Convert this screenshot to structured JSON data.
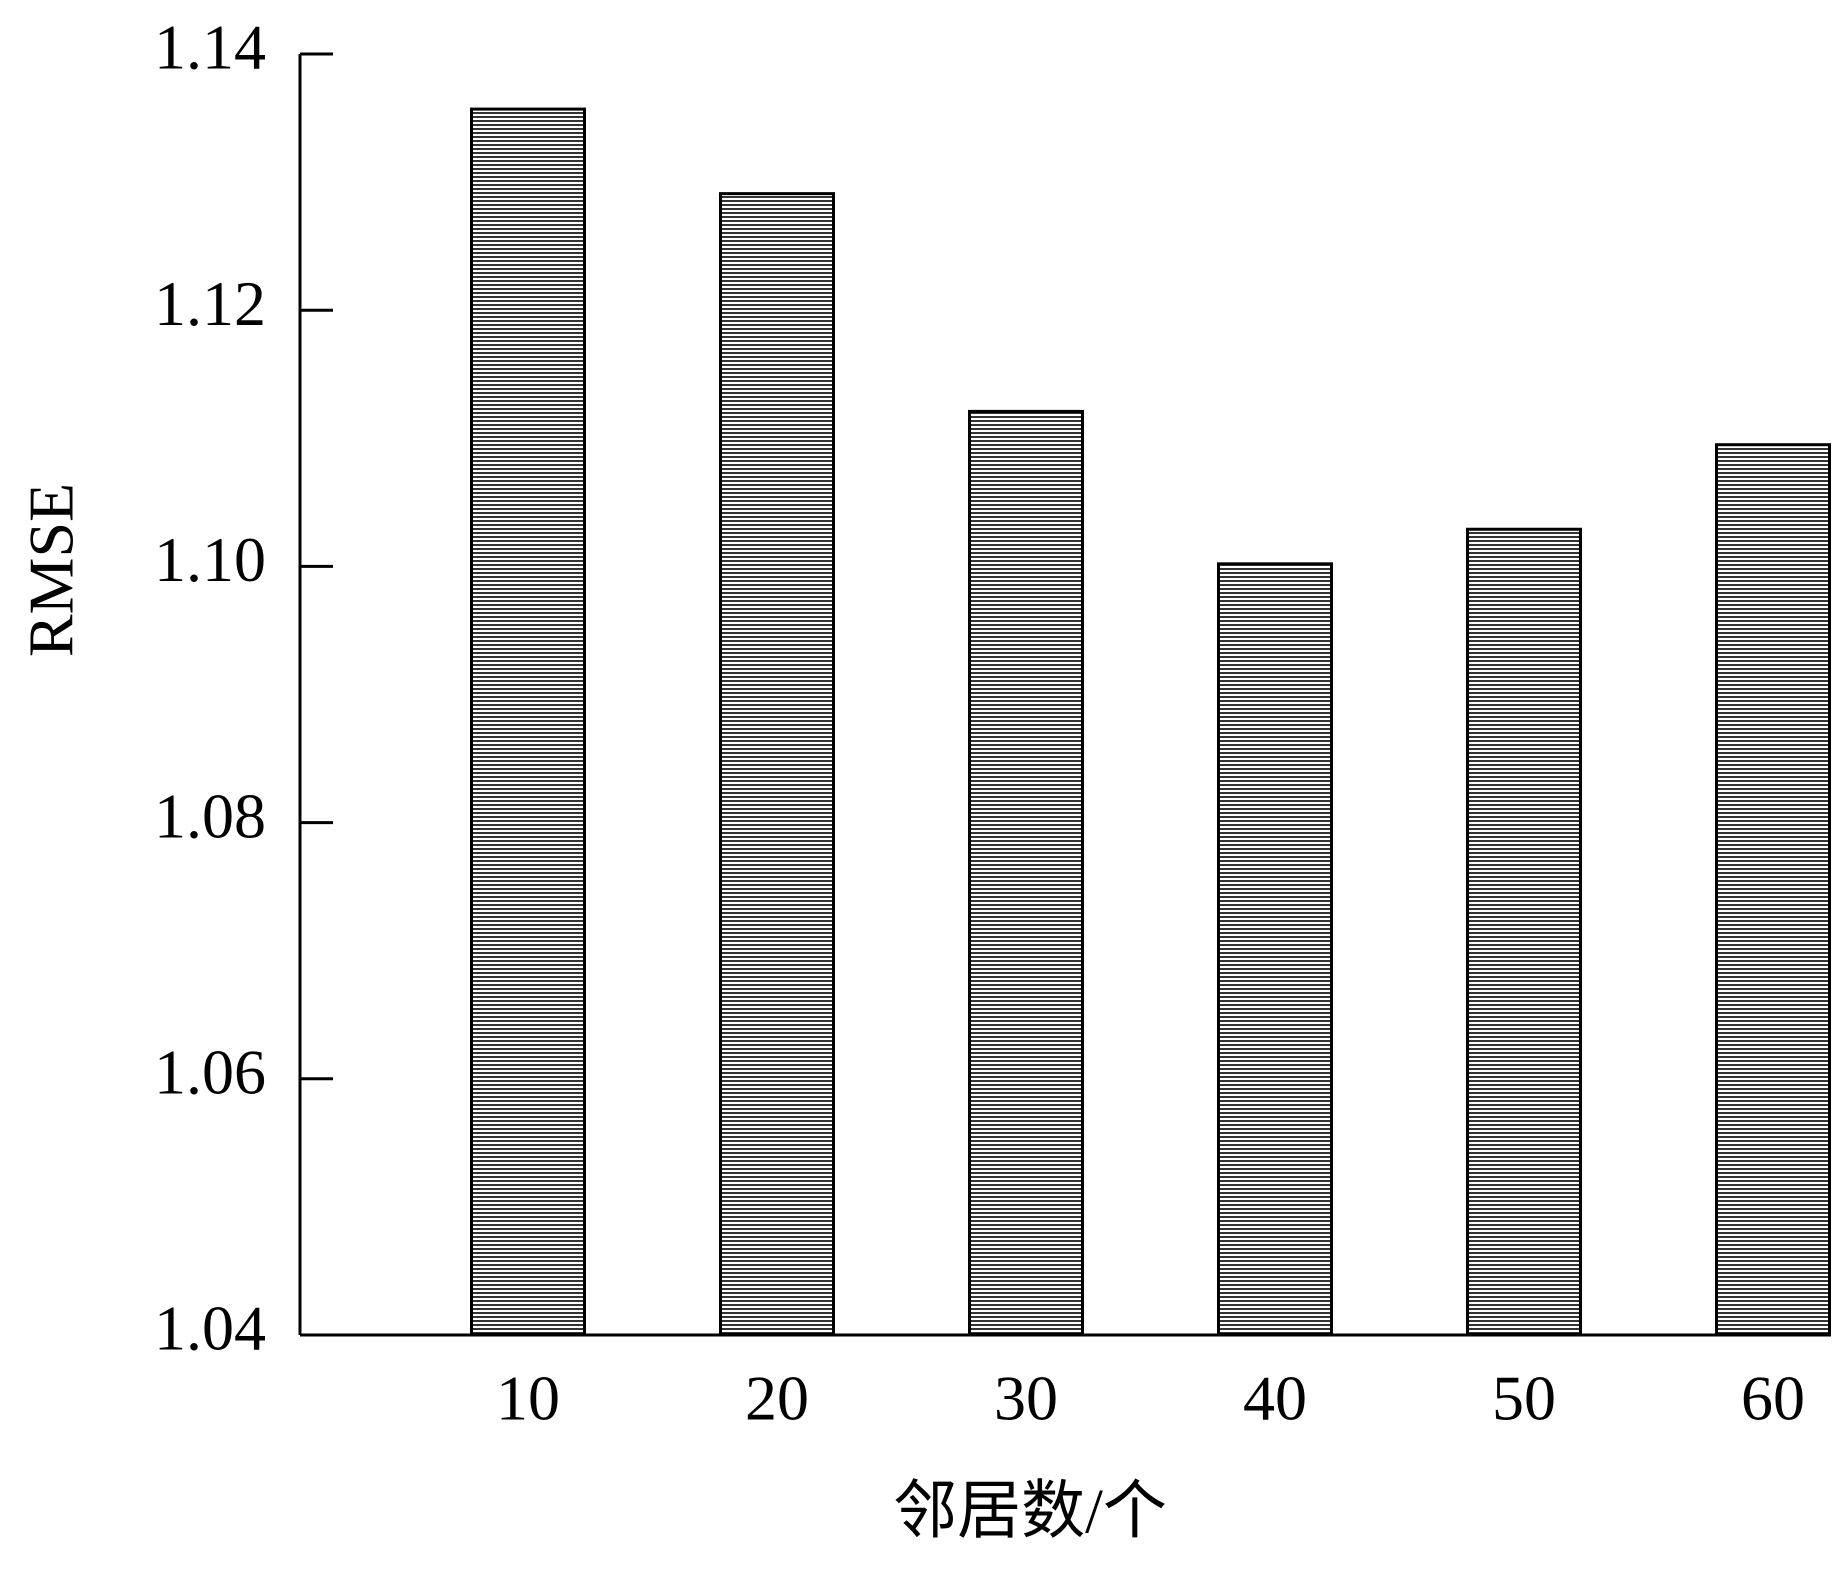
{
  "chart_data": {
    "type": "bar",
    "xlabel": "邻居数/个",
    "ylabel": "RMSE",
    "categories": [
      "10",
      "20",
      "30",
      "40",
      "50",
      "60"
    ],
    "values": [
      1.1357,
      1.1291,
      1.1121,
      1.1002,
      1.1029,
      1.1095
    ],
    "color": "#000000",
    "ylim": [
      1.04,
      1.14
    ],
    "yticks": [
      1.04,
      1.06,
      1.08,
      {
        "value": 1.1,
        "label": "1.10"
      },
      1.12,
      1.14
    ]
  }
}
